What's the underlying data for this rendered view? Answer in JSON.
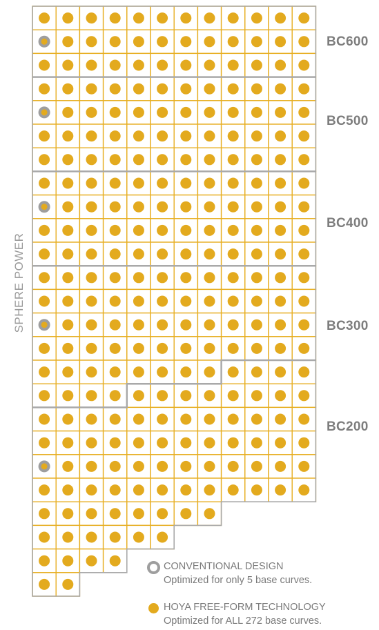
{
  "axis_label": "SPHERE POWER",
  "colors": {
    "grid": "#e7ae21",
    "dot": "#e3aa1e",
    "ring": "#9e9e9e",
    "boundary": "#a9a9a9",
    "label": "#7d7d7d"
  },
  "grid": {
    "row_lengths": [
      12,
      12,
      12,
      12,
      12,
      12,
      12,
      12,
      12,
      12,
      12,
      12,
      12,
      12,
      12,
      12,
      12,
      12,
      12,
      12,
      12,
      8,
      6,
      4,
      2
    ],
    "conventional_rows": [
      1,
      4,
      8,
      13,
      19
    ]
  },
  "base_curves": [
    {
      "label": "BC600"
    },
    {
      "label": "BC500"
    },
    {
      "label": "BC400"
    },
    {
      "label": "BC300"
    },
    {
      "label": "BC200"
    }
  ],
  "legend": {
    "conventional": {
      "title": "CONVENTIONAL DESIGN",
      "desc": "Optimized for only 5 base curves.",
      "icon": "ring-icon"
    },
    "freeform": {
      "title": "HOYA FREE-FORM TECHNOLOGY",
      "desc": "Optimized for ALL 272 base curves.",
      "icon": "dot-icon"
    }
  }
}
